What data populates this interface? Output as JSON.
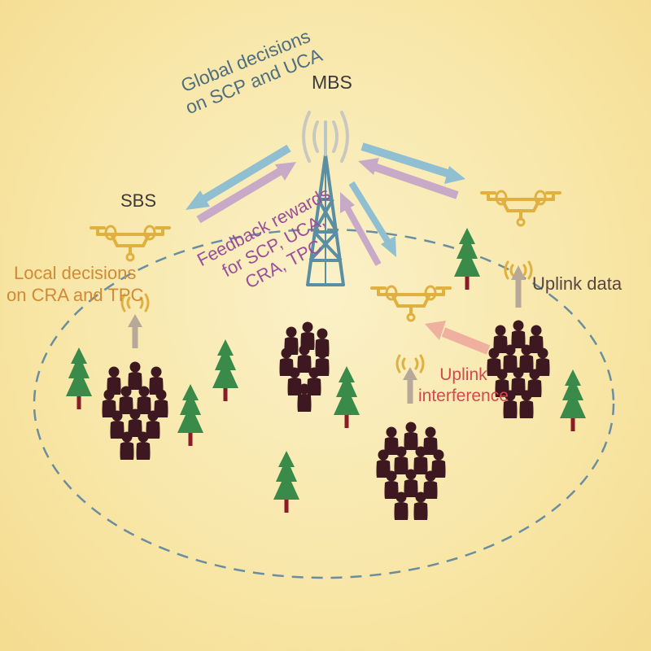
{
  "labels": {
    "mbs": "MBS",
    "sbs": "SBS",
    "global_decisions": [
      "Global decisions",
      "on SCP and UCA"
    ],
    "feedback_rewards": [
      "Feedback rewards",
      "for SCP, UCA,",
      "CRA, TPC"
    ],
    "local_decisions": [
      "Local decisions",
      "on CRA and TPC"
    ],
    "uplink_data": "Uplink data",
    "uplink_interference": [
      "Uplink",
      "interference"
    ]
  },
  "colors": {
    "background": "#f8e6a6",
    "tower": "#5b8da3",
    "drone": "#e0b040",
    "downlink_arrow": "#8fbfd0",
    "feedback_arrow": "#c8aac8",
    "tree_green": "#3a8a4a",
    "tree_trunk": "#8a1c2a",
    "crowd": "#3d1820",
    "coverage_ellipse": "#6a8ea0",
    "uplink_arrow": "#b8a898",
    "interference_arrow": "#f0b0a0"
  },
  "icons": [
    "tower-icon",
    "drone-icon",
    "tree-icon",
    "crowd-icon",
    "signal-icon"
  ]
}
